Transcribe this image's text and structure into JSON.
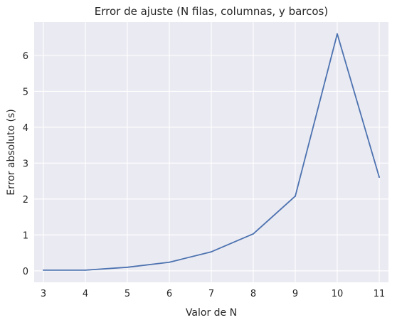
{
  "chart_data": {
    "type": "line",
    "title": "Error de ajuste (N filas, columnas, y barcos)",
    "xlabel": "Valor de N",
    "ylabel": "Error absoluto (s)",
    "x": [
      3,
      4,
      5,
      6,
      7,
      8,
      9,
      10,
      11
    ],
    "series": [
      {
        "values": [
          0.02,
          0.02,
          0.1,
          0.24,
          0.53,
          1.03,
          2.08,
          6.6,
          2.61
        ]
      }
    ],
    "xlim": [
      2.78,
      11.22
    ],
    "ylim": [
      -0.32,
      6.93
    ],
    "xticks": [
      "3",
      "4",
      "5",
      "6",
      "7",
      "8",
      "9",
      "10",
      "11"
    ],
    "yticks": [
      "0",
      "1",
      "2",
      "3",
      "4",
      "5",
      "6"
    ],
    "grid": true,
    "colors": {
      "background": "#eaeaf2",
      "grid": "#ffffff",
      "line": "#4c72b0",
      "text": "#262626"
    }
  }
}
